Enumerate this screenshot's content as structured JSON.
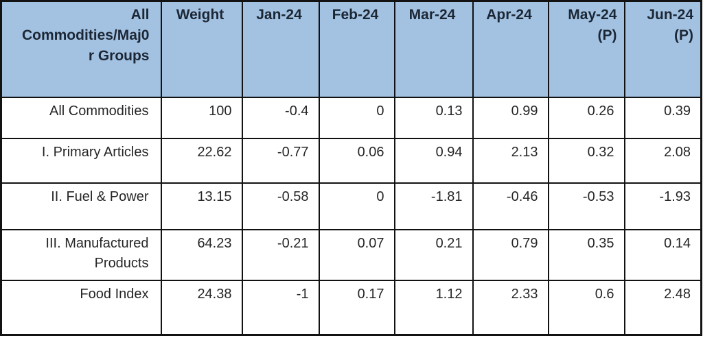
{
  "colors": {
    "header_bg": "#a3c2e2",
    "header_text": "#1c2735",
    "body_text": "#262626",
    "border": "#121212",
    "page_bg": "#ffffff"
  },
  "table": {
    "columns": [
      {
        "label": "All\nCommodities/Maj0\nr Groups",
        "align": "right"
      },
      {
        "label": "Weight",
        "align": "center"
      },
      {
        "label": "Jan-24",
        "align": "center"
      },
      {
        "label": "Feb-24",
        "align": "center"
      },
      {
        "label": "Mar-24",
        "align": "center"
      },
      {
        "label": "Apr-24",
        "align": "center"
      },
      {
        "label": "May-24\n(P)",
        "align": "right"
      },
      {
        "label": "Jun-24\n(P)",
        "align": "right"
      }
    ],
    "rows": [
      {
        "label": "All Commodities",
        "values": [
          "100",
          "-0.4",
          "0",
          "0.13",
          "0.99",
          "0.26",
          "0.39"
        ]
      },
      {
        "label": "I. Primary Articles",
        "values": [
          "22.62",
          "-0.77",
          "0.06",
          "0.94",
          "2.13",
          "0.32",
          "2.08"
        ]
      },
      {
        "label": "II. Fuel & Power",
        "values": [
          "13.15",
          "-0.58",
          "0",
          "-1.81",
          "-0.46",
          "-0.53",
          "-1.93"
        ]
      },
      {
        "label": "III. Manufactured Products",
        "values": [
          "64.23",
          "-0.21",
          "0.07",
          "0.21",
          "0.79",
          "0.35",
          "0.14"
        ]
      },
      {
        "label": "Food Index",
        "values": [
          "24.38",
          "-1",
          "0.17",
          "1.12",
          "2.33",
          "0.6",
          "2.48"
        ]
      }
    ]
  }
}
